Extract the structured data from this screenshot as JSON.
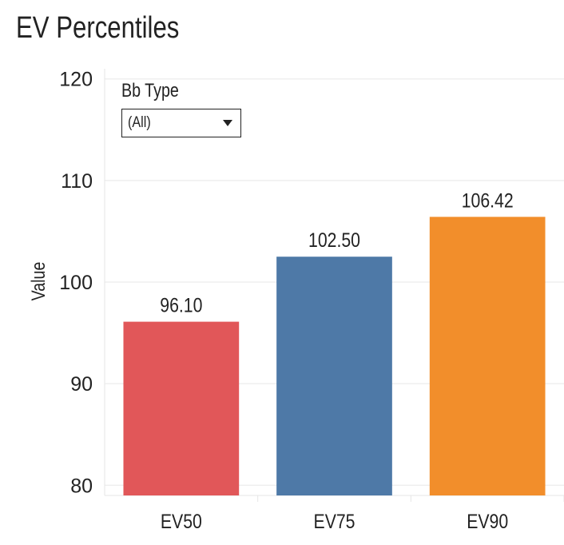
{
  "page": {
    "title": "EV Percentiles"
  },
  "filter": {
    "label": "Bb Type",
    "selected": "(All)",
    "icon": "caret-down-icon"
  },
  "chart_data": {
    "type": "bar",
    "title": "EV Percentiles",
    "xlabel": "",
    "ylabel": "Value",
    "categories": [
      "EV50",
      "EV75",
      "EV90"
    ],
    "values": [
      96.1,
      102.5,
      106.42
    ],
    "value_labels": [
      "96.10",
      "102.50",
      "106.42"
    ],
    "colors": [
      "#e15759",
      "#4e79a7",
      "#f28e2b"
    ],
    "ylim": [
      79,
      121
    ],
    "yticks": [
      80,
      90,
      100,
      110,
      120
    ],
    "grid": true,
    "gridline_color": "#efefef"
  }
}
